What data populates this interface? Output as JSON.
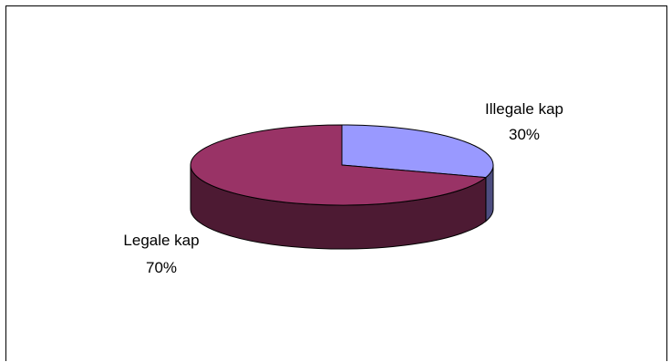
{
  "chart_data": {
    "type": "pie",
    "style": "3d",
    "categories": [
      "Illegale kap",
      "Legale kap"
    ],
    "values": [
      30,
      70
    ],
    "percent_labels": [
      "30%",
      "70%"
    ],
    "colors": {
      "Illegale kap": {
        "top": "#9999ff",
        "side": "#4d4d80"
      },
      "Legale kap": {
        "top": "#993366",
        "side": "#4d1a33"
      }
    },
    "title": "",
    "legend": "none"
  }
}
